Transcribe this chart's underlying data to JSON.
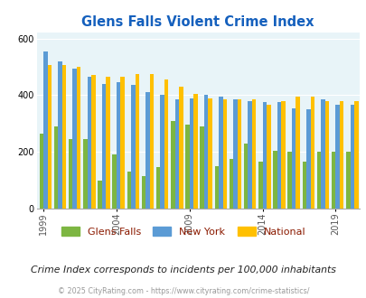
{
  "title": "Glens Falls Violent Crime Index",
  "years": [
    1999,
    2000,
    2001,
    2002,
    2003,
    2004,
    2005,
    2006,
    2007,
    2008,
    2009,
    2010,
    2011,
    2012,
    2013,
    2014,
    2015,
    2016,
    2017,
    2018,
    2019,
    2020
  ],
  "glens_falls": [
    265,
    290,
    245,
    245,
    100,
    190,
    130,
    115,
    145,
    310,
    295,
    290,
    150,
    175,
    230,
    165,
    205,
    200,
    165,
    200,
    200,
    200
  ],
  "new_york": [
    555,
    520,
    495,
    465,
    440,
    445,
    435,
    410,
    400,
    385,
    390,
    400,
    395,
    385,
    380,
    375,
    375,
    355,
    350,
    385,
    365,
    365
  ],
  "national": [
    505,
    505,
    500,
    470,
    465,
    465,
    475,
    475,
    455,
    430,
    405,
    390,
    385,
    385,
    385,
    365,
    380,
    395,
    395,
    380,
    380,
    380
  ],
  "glens_color": "#7db642",
  "ny_color": "#5b9bd5",
  "national_color": "#ffc000",
  "bg_color": "#e8f4f8",
  "title_color": "#1560bd",
  "footer_color": "#999999",
  "note_color": "#333333",
  "legend_color": "#8b2000",
  "ylim": [
    0,
    620
  ],
  "yticks": [
    0,
    200,
    400,
    600
  ],
  "bar_width": 0.28,
  "footer_text": "© 2025 CityRating.com - https://www.cityrating.com/crime-statistics/",
  "note_text": "Crime Index corresponds to incidents per 100,000 inhabitants"
}
